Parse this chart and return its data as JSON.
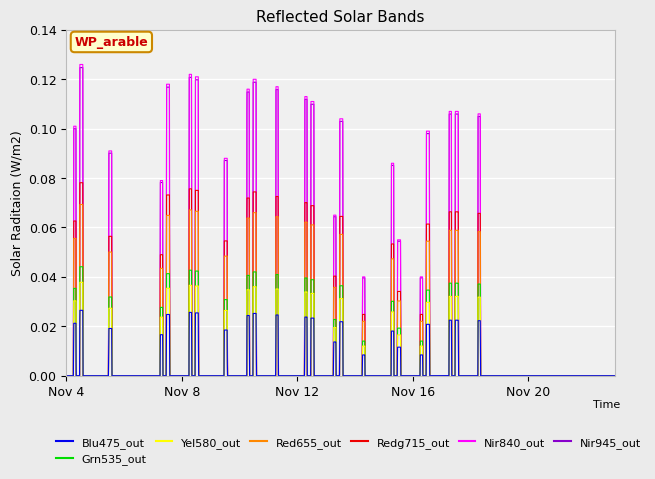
{
  "title": "Reflected Solar Bands",
  "ylabel": "Solar Raditaion (W/m2)",
  "ylim": [
    0,
    0.14
  ],
  "yticks": [
    0.0,
    0.02,
    0.04,
    0.06,
    0.08,
    0.1,
    0.12,
    0.14
  ],
  "background_color": "#ebebeb",
  "plot_bg_color": "#f0f0f0",
  "annotation_text": "WP_arable",
  "annotation_bg": "#ffffcc",
  "annotation_border": "#cc8800",
  "annotation_text_color": "#cc0000",
  "x_tick_labels": [
    "Nov 4",
    "Nov 8",
    "Nov 12",
    "Nov 16",
    "Nov 20"
  ],
  "x_tick_positions": [
    0,
    4,
    8,
    12,
    16
  ],
  "total_days": 19,
  "series": [
    {
      "label": "Blu475_out",
      "color": "#0000ee"
    },
    {
      "label": "Grn535_out",
      "color": "#00dd00"
    },
    {
      "label": "Yel580_out",
      "color": "#ffff00"
    },
    {
      "label": "Red655_out",
      "color": "#ff8800"
    },
    {
      "label": "Redg715_out",
      "color": "#ee0000"
    },
    {
      "label": "Nir840_out",
      "color": "#ff00ff"
    },
    {
      "label": "Nir945_out",
      "color": "#8800cc"
    }
  ],
  "day_peaks": [
    {
      "day": 0,
      "morning": 0.101,
      "noon": 0.126
    },
    {
      "day": 1,
      "morning": 0.0,
      "noon": 0.091
    },
    {
      "day": 2,
      "morning": 0.0,
      "noon": 0.0
    },
    {
      "day": 3,
      "morning": 0.079,
      "noon": 0.118
    },
    {
      "day": 4,
      "morning": 0.122,
      "noon": 0.121
    },
    {
      "day": 5,
      "morning": 0.0,
      "noon": 0.088
    },
    {
      "day": 6,
      "morning": 0.116,
      "noon": 0.12
    },
    {
      "day": 7,
      "morning": 0.117,
      "noon": 0.0
    },
    {
      "day": 8,
      "morning": 0.113,
      "noon": 0.111
    },
    {
      "day": 9,
      "morning": 0.065,
      "noon": 0.104
    },
    {
      "day": 10,
      "morning": 0.04,
      "noon": 0.0
    },
    {
      "day": 11,
      "morning": 0.086,
      "noon": 0.055
    },
    {
      "day": 12,
      "morning": 0.04,
      "noon": 0.099
    },
    {
      "day": 13,
      "morning": 0.107,
      "noon": 0.107
    },
    {
      "day": 14,
      "morning": 0.106,
      "noon": 0.0
    }
  ],
  "scale_nir945": 0.99,
  "scale_redg715": 0.62,
  "scale_red655": 0.55,
  "scale_grn535": 0.35,
  "scale_yel580": 0.3,
  "scale_blu475": 0.21
}
